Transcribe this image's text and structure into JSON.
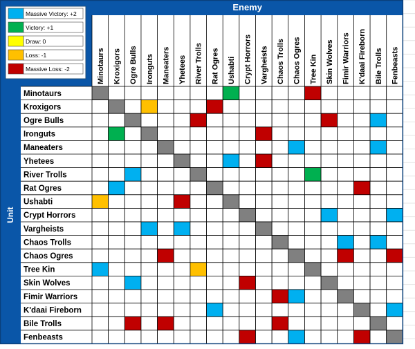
{
  "chart_data": {
    "type": "heatmap",
    "column_axis_label": "Enemy",
    "row_axis_label": "Unit",
    "units": [
      "Minotaurs",
      "Kroxigors",
      "Ogre Bulls",
      "Ironguts",
      "Maneaters",
      "Yhetees",
      "River Trolls",
      "Rat Ogres",
      "Ushabti",
      "Crypt Horrors",
      "Vargheists",
      "Chaos Trolls",
      "Chaos Ogres",
      "Tree Kin",
      "Skin Wolves",
      "Fimir Warriors",
      "K'daai Fireborn",
      "Bile Trolls",
      "Fenbeasts"
    ],
    "legend": [
      {
        "label": "Massive Victory: +2",
        "value": 2,
        "color": "#00b0f0"
      },
      {
        "label": "Victory: +1",
        "value": 1,
        "color": "#00b050"
      },
      {
        "label": "Draw: 0",
        "value": 0,
        "color": "#ffff00"
      },
      {
        "label": "Loss: -1",
        "value": -1,
        "color": "#ffc000"
      },
      {
        "label": "Massive Loss: -2",
        "value": -2,
        "color": "#c00000"
      }
    ],
    "self_color": "#808080",
    "matrix": [
      [
        null,
        null,
        null,
        null,
        null,
        null,
        null,
        null,
        1,
        null,
        null,
        null,
        null,
        -2,
        null,
        null,
        null,
        null,
        null
      ],
      [
        null,
        null,
        null,
        -1,
        null,
        null,
        null,
        -2,
        null,
        null,
        null,
        null,
        null,
        null,
        null,
        null,
        null,
        null,
        null
      ],
      [
        null,
        null,
        null,
        null,
        null,
        null,
        -2,
        null,
        null,
        null,
        null,
        null,
        null,
        null,
        -2,
        null,
        null,
        2,
        null
      ],
      [
        null,
        1,
        null,
        null,
        null,
        null,
        null,
        null,
        null,
        null,
        -2,
        null,
        null,
        null,
        null,
        null,
        null,
        null,
        null
      ],
      [
        null,
        null,
        null,
        null,
        null,
        null,
        null,
        null,
        null,
        null,
        null,
        null,
        2,
        null,
        null,
        null,
        null,
        2,
        null
      ],
      [
        null,
        null,
        null,
        null,
        null,
        null,
        null,
        null,
        2,
        null,
        -2,
        null,
        null,
        null,
        null,
        null,
        null,
        null,
        null
      ],
      [
        null,
        null,
        2,
        null,
        null,
        null,
        null,
        null,
        null,
        null,
        null,
        null,
        null,
        1,
        null,
        null,
        null,
        null,
        null
      ],
      [
        null,
        2,
        null,
        null,
        null,
        null,
        null,
        null,
        null,
        null,
        null,
        null,
        null,
        null,
        null,
        null,
        -2,
        null,
        null
      ],
      [
        -1,
        null,
        null,
        null,
        null,
        -2,
        null,
        null,
        null,
        null,
        null,
        null,
        null,
        null,
        null,
        null,
        null,
        null,
        null
      ],
      [
        null,
        null,
        null,
        null,
        null,
        null,
        null,
        null,
        null,
        null,
        null,
        null,
        null,
        null,
        2,
        null,
        null,
        null,
        2
      ],
      [
        null,
        null,
        null,
        2,
        null,
        2,
        null,
        null,
        null,
        null,
        null,
        null,
        null,
        null,
        null,
        null,
        null,
        null,
        null
      ],
      [
        null,
        null,
        null,
        null,
        null,
        null,
        null,
        null,
        null,
        null,
        null,
        null,
        null,
        null,
        null,
        2,
        null,
        2,
        null
      ],
      [
        null,
        null,
        null,
        null,
        -2,
        null,
        null,
        null,
        null,
        null,
        null,
        null,
        null,
        null,
        null,
        -2,
        null,
        null,
        -2
      ],
      [
        2,
        null,
        null,
        null,
        null,
        null,
        -1,
        null,
        null,
        null,
        null,
        null,
        null,
        null,
        null,
        null,
        null,
        null,
        null
      ],
      [
        null,
        null,
        2,
        null,
        null,
        null,
        null,
        null,
        null,
        -2,
        null,
        null,
        null,
        null,
        null,
        null,
        null,
        null,
        null
      ],
      [
        null,
        null,
        null,
        null,
        null,
        null,
        null,
        null,
        null,
        null,
        null,
        -2,
        2,
        null,
        null,
        null,
        null,
        null,
        null
      ],
      [
        null,
        null,
        null,
        null,
        null,
        null,
        null,
        2,
        null,
        null,
        null,
        null,
        null,
        null,
        null,
        null,
        null,
        null,
        2
      ],
      [
        null,
        null,
        -2,
        null,
        -2,
        null,
        null,
        null,
        null,
        null,
        null,
        -2,
        null,
        null,
        null,
        null,
        null,
        null,
        null
      ],
      [
        null,
        null,
        null,
        null,
        null,
        null,
        null,
        null,
        null,
        -2,
        null,
        null,
        2,
        null,
        null,
        null,
        -2,
        null,
        null
      ]
    ]
  }
}
